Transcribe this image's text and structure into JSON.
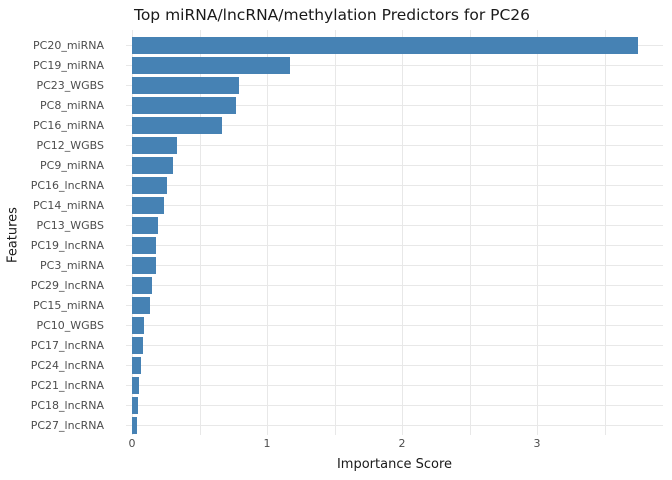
{
  "chart_data": {
    "type": "bar",
    "orientation": "horizontal",
    "title": "Top miRNA/lncRNA/methylation Predictors for PC26",
    "xlabel": "Importance Score",
    "ylabel": "Features",
    "categories": [
      "PC20_miRNA",
      "PC19_miRNA",
      "PC23_WGBS",
      "PC8_miRNA",
      "PC16_miRNA",
      "PC12_WGBS",
      "PC9_miRNA",
      "PC16_lncRNA",
      "PC14_miRNA",
      "PC13_WGBS",
      "PC19_lncRNA",
      "PC3_miRNA",
      "PC29_lncRNA",
      "PC15_miRNA",
      "PC10_WGBS",
      "PC17_lncRNA",
      "PC24_lncRNA",
      "PC21_lncRNA",
      "PC18_lncRNA",
      "PC27_lncRNA"
    ],
    "values": [
      3.75,
      1.17,
      0.79,
      0.77,
      0.67,
      0.33,
      0.3,
      0.26,
      0.24,
      0.19,
      0.18,
      0.18,
      0.15,
      0.13,
      0.09,
      0.08,
      0.07,
      0.055,
      0.045,
      0.04
    ],
    "xticks": [
      0,
      1,
      2,
      3
    ],
    "xlim": [
      0,
      3.93
    ],
    "grid_step": 0.5,
    "grid": true,
    "legend": "none",
    "bar_color": "#4682b4",
    "grid_color": "#e8e8e8",
    "background_color": "#ffffff"
  }
}
